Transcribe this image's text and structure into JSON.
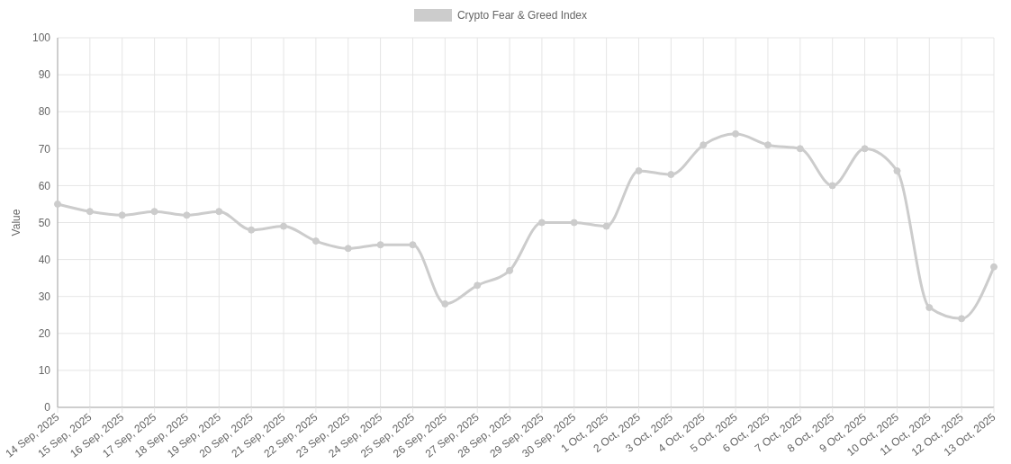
{
  "chart_data": {
    "type": "line",
    "categories": [
      "14 Sep, 2025",
      "15 Sep, 2025",
      "16 Sep, 2025",
      "17 Sep, 2025",
      "18 Sep, 2025",
      "19 Sep, 2025",
      "20 Sep, 2025",
      "21 Sep, 2025",
      "22 Sep, 2025",
      "23 Sep, 2025",
      "24 Sep, 2025",
      "25 Sep, 2025",
      "26 Sep, 2025",
      "27 Sep, 2025",
      "28 Sep, 2025",
      "29 Sep, 2025",
      "30 Sep, 2025",
      "1 Oct, 2025",
      "2 Oct, 2025",
      "3 Oct, 2025",
      "4 Oct, 2025",
      "5 Oct, 2025",
      "6 Oct, 2025",
      "7 Oct, 2025",
      "8 Oct, 2025",
      "9 Oct, 2025",
      "10 Oct, 2025",
      "11 Oct, 2025",
      "12 Oct, 2025",
      "13 Oct, 2025"
    ],
    "series": [
      {
        "name": "Crypto Fear & Greed Index",
        "color": "#cccccc",
        "values": [
          55,
          53,
          52,
          53,
          52,
          53,
          48,
          49,
          45,
          43,
          44,
          44,
          28,
          33,
          37,
          50,
          50,
          49,
          64,
          63,
          71,
          74,
          71,
          70,
          60,
          70,
          64,
          27,
          24,
          38
        ]
      }
    ],
    "ylabel": "Value",
    "ylim": [
      0,
      100
    ],
    "yticks": [
      0,
      10,
      20,
      30,
      40,
      50,
      60,
      70,
      80,
      90,
      100
    ],
    "grid": true,
    "legend": "top",
    "marker": "circle",
    "line_style": "solid"
  }
}
